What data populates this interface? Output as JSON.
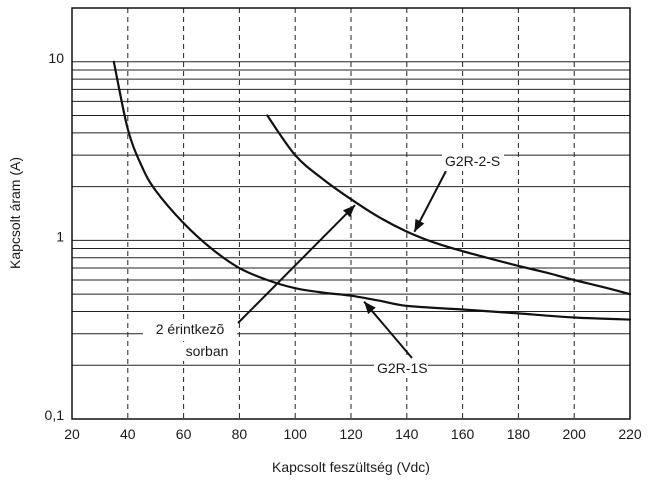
{
  "chart_data": {
    "type": "line",
    "xlabel": "Kapcsolt feszültség (Vdc)",
    "ylabel": "Kapcsolt áram (A)",
    "xlim": [
      20,
      220
    ],
    "ylim": [
      0.1,
      20
    ],
    "yscale": "log",
    "xticks": [
      "20",
      "40",
      "60",
      "80",
      "100",
      "120",
      "140",
      "160",
      "180",
      "200",
      "220"
    ],
    "yticks": [
      {
        "value": 0.1,
        "label": "0,1"
      },
      {
        "value": 1,
        "label": "1"
      },
      {
        "value": 10,
        "label": "10"
      }
    ],
    "grid": true,
    "series": [
      {
        "name": "G2R-2-S",
        "x": [
          90,
          100,
          110,
          120,
          130,
          140,
          150,
          160,
          170,
          180,
          190,
          200,
          210,
          220
        ],
        "y": [
          5.0,
          3.0,
          2.2,
          1.7,
          1.35,
          1.12,
          0.97,
          0.87,
          0.79,
          0.72,
          0.66,
          0.6,
          0.55,
          0.5
        ]
      },
      {
        "name": "G2R-1S",
        "x": [
          35,
          40,
          45,
          50,
          60,
          70,
          80,
          90,
          100,
          110,
          120,
          130,
          140,
          160,
          180,
          200,
          220
        ],
        "y": [
          10,
          4.2,
          2.6,
          1.9,
          1.25,
          0.9,
          0.7,
          0.6,
          0.54,
          0.51,
          0.49,
          0.46,
          0.43,
          0.41,
          0.39,
          0.37,
          0.36
        ]
      }
    ],
    "annotations": [
      {
        "text": "G2R-2-S",
        "target_series": 0,
        "target_x": 142
      },
      {
        "text": "G2R-1S",
        "target_series": 1,
        "target_x": 124
      },
      {
        "text": "2 érintkezõ",
        "text2": "sorban",
        "target_series": 0,
        "target_x": 120
      }
    ]
  }
}
